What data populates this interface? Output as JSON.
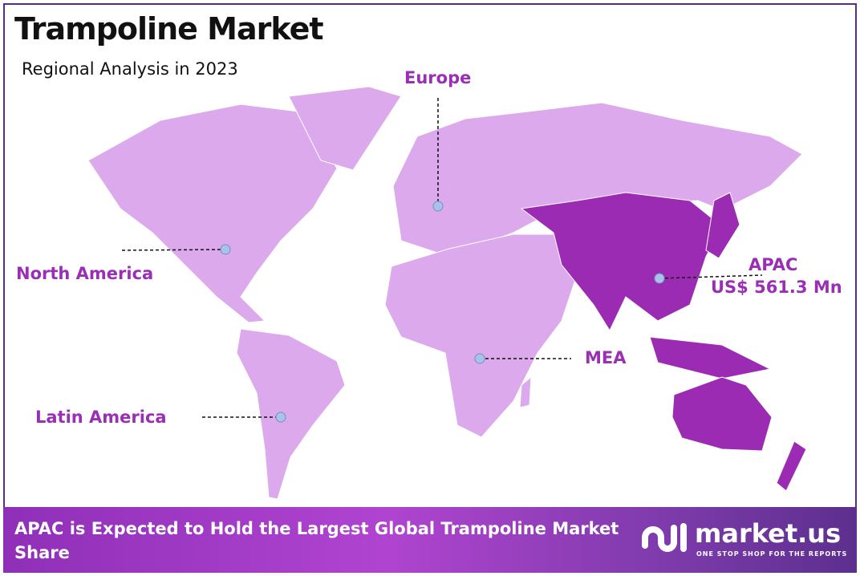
{
  "title": "Trampoline Market",
  "subtitle": "Regional Analysis in 2023",
  "colors": {
    "region_default": "#dca9ec",
    "region_highlight": "#9b2bb3",
    "label": "#9a2fb5",
    "marker": "#a9c2ec",
    "border": "#5b2d7e"
  },
  "regions": [
    {
      "name": "North America",
      "highlight": false
    },
    {
      "name": "Europe",
      "highlight": false
    },
    {
      "name": "APAC",
      "value": "US$ 561.3 Mn",
      "highlight": true
    },
    {
      "name": "MEA",
      "highlight": false
    },
    {
      "name": "Latin America",
      "highlight": false
    }
  ],
  "footer": {
    "text": "APAC is Expected to Hold the Largest Global Trampoline Market Share",
    "logo_name": "market.us",
    "logo_tagline": "ONE STOP SHOP FOR THE REPORTS"
  }
}
